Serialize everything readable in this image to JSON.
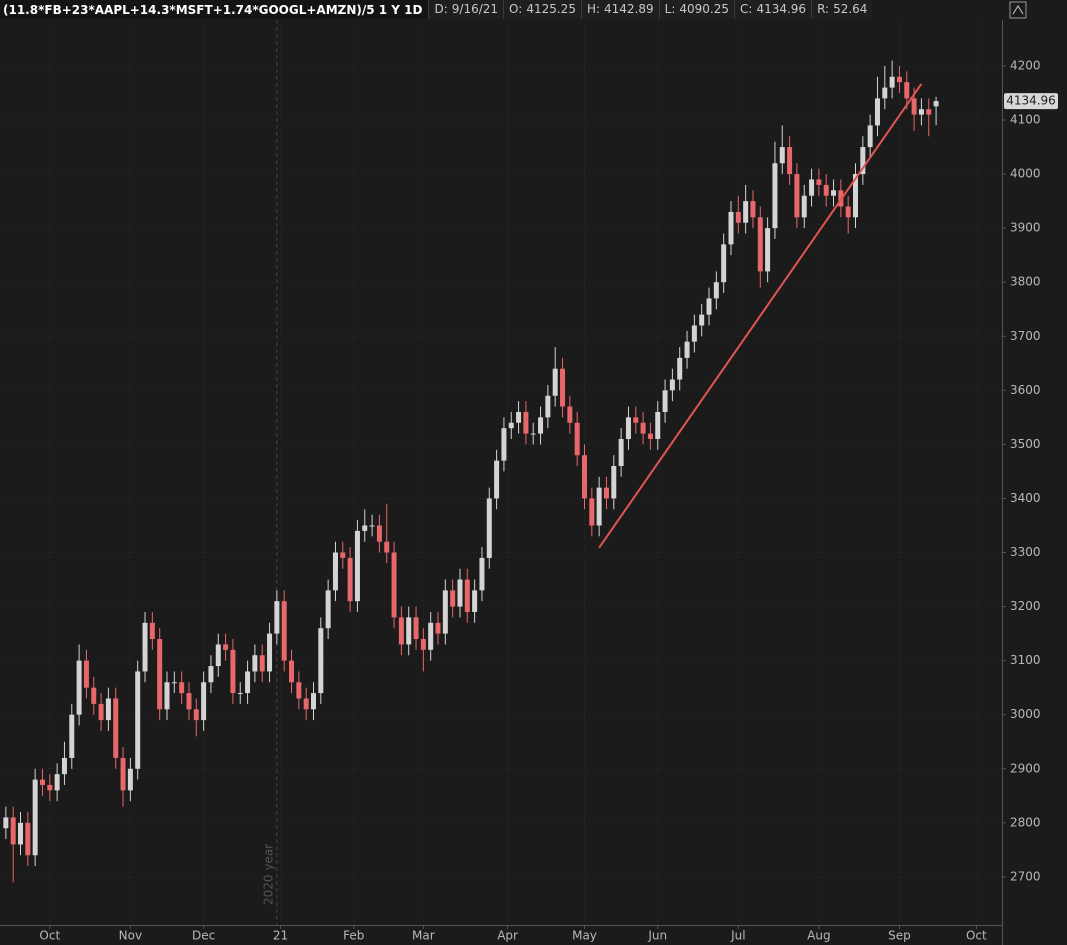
{
  "header": {
    "title": "(11.8*FB+23*AAPL+14.3*MSFT+1.74*GOOGL+AMZN)/5 1 Y 1D",
    "items": [
      {
        "label": "D:",
        "value": "9/16/21"
      },
      {
        "label": "O:",
        "value": 4125.25
      },
      {
        "label": "H:",
        "value": 4142.89
      },
      {
        "label": "L:",
        "value": 4090.25
      },
      {
        "label": "C:",
        "value": 4134.96
      },
      {
        "label": "R:",
        "value": 52.64
      }
    ]
  },
  "chart_data": {
    "type": "candlestick",
    "up_color": "#d4d4d4",
    "down_color": "#e8676b",
    "xlim": [
      -1.6,
      272
    ],
    "ylim": [
      2611,
      4285
    ],
    "xticks": [
      {
        "value": 12,
        "label": "Oct"
      },
      {
        "value": 34,
        "label": "Nov"
      },
      {
        "value": 54,
        "label": "Dec"
      },
      {
        "value": 75,
        "label": "21"
      },
      {
        "value": 95,
        "label": "Feb"
      },
      {
        "value": 114,
        "label": "Mar"
      },
      {
        "value": 137,
        "label": "Apr"
      },
      {
        "value": 158,
        "label": "May"
      },
      {
        "value": 178,
        "label": "Jun"
      },
      {
        "value": 200,
        "label": "Jul"
      },
      {
        "value": 222,
        "label": "Aug"
      },
      {
        "value": 244,
        "label": "Sep"
      },
      {
        "value": 265,
        "label": "Oct"
      }
    ],
    "yticks": [
      2700,
      2800,
      2900,
      3000,
      3100,
      3200,
      3300,
      3400,
      3500,
      3600,
      3700,
      3800,
      3900,
      4000,
      4100,
      4200
    ],
    "grid": true,
    "annotations": [
      {
        "text": "2020 year",
        "x": 74
      }
    ],
    "trendline": {
      "x": [
        162,
        250
      ],
      "y": [
        3309,
        4167
      ],
      "color": "#e05555"
    },
    "x": [
      0,
      2,
      4,
      6,
      8,
      10,
      12,
      14,
      16,
      18,
      20,
      22,
      24,
      26,
      28,
      30,
      32,
      34,
      36,
      38,
      40,
      42,
      44,
      46,
      48,
      50,
      52,
      54,
      56,
      58,
      60,
      62,
      64,
      66,
      68,
      70,
      72,
      74,
      76,
      78,
      80,
      82,
      84,
      86,
      88,
      90,
      92,
      94,
      96,
      98,
      100,
      102,
      104,
      106,
      108,
      110,
      112,
      114,
      116,
      118,
      120,
      122,
      124,
      126,
      128,
      130,
      132,
      134,
      136,
      138,
      140,
      142,
      144,
      146,
      148,
      150,
      152,
      154,
      156,
      158,
      160,
      162,
      164,
      166,
      168,
      170,
      172,
      174,
      176,
      178,
      180,
      182,
      184,
      186,
      188,
      190,
      192,
      194,
      196,
      198,
      200,
      202,
      204,
      206,
      208,
      210,
      212,
      214,
      216,
      218,
      220,
      222,
      224,
      226,
      228,
      230,
      232,
      234,
      236,
      238,
      240,
      242,
      244,
      246,
      248,
      250,
      252,
      254
    ],
    "open": [
      2790,
      2810,
      2760,
      2800,
      2740,
      2880,
      2870,
      2860,
      2890,
      2920,
      3000,
      3100,
      3050,
      3020,
      2990,
      3030,
      2920,
      2860,
      2900,
      3080,
      3170,
      3140,
      3010,
      3060,
      3060,
      3040,
      3010,
      2990,
      3060,
      3090,
      3130,
      3120,
      3040,
      3040,
      3080,
      3110,
      3080,
      3150,
      3210,
      3100,
      3060,
      3030,
      3010,
      3040,
      3160,
      3230,
      3300,
      3290,
      3210,
      3340,
      3350,
      3350,
      3320,
      3300,
      3180,
      3130,
      3180,
      3140,
      3120,
      3170,
      3150,
      3230,
      3200,
      3250,
      3190,
      3230,
      3290,
      3400,
      3470,
      3530,
      3540,
      3560,
      3520,
      3520,
      3550,
      3590,
      3640,
      3570,
      3540,
      3480,
      3400,
      3350,
      3420,
      3400,
      3460,
      3510,
      3550,
      3540,
      3520,
      3510,
      3560,
      3600,
      3620,
      3660,
      3690,
      3720,
      3740,
      3770,
      3800,
      3870,
      3930,
      3910,
      3950,
      3920,
      3820,
      3900,
      4020,
      4050,
      4000,
      3920,
      3960,
      3990,
      3980,
      3960,
      3970,
      3940,
      3920,
      4000,
      4050,
      4090,
      4140,
      4160,
      4180,
      4170,
      4140,
      4110,
      4120,
      4125.25
    ],
    "high": [
      2830,
      2830,
      2820,
      2820,
      2900,
      2900,
      2890,
      2910,
      2950,
      3020,
      3130,
      3120,
      3070,
      3040,
      3050,
      3050,
      2940,
      2920,
      3100,
      3190,
      3190,
      3160,
      3080,
      3080,
      3080,
      3060,
      3030,
      3080,
      3110,
      3150,
      3150,
      3140,
      3060,
      3100,
      3130,
      3130,
      3170,
      3230,
      3230,
      3120,
      3080,
      3050,
      3060,
      3180,
      3250,
      3320,
      3320,
      3310,
      3360,
      3380,
      3370,
      3370,
      3390,
      3320,
      3200,
      3200,
      3200,
      3160,
      3190,
      3190,
      3250,
      3250,
      3270,
      3270,
      3250,
      3310,
      3420,
      3490,
      3550,
      3560,
      3580,
      3580,
      3540,
      3570,
      3610,
      3680,
      3660,
      3590,
      3560,
      3500,
      3420,
      3440,
      3440,
      3480,
      3530,
      3570,
      3570,
      3560,
      3540,
      3580,
      3620,
      3640,
      3680,
      3710,
      3740,
      3760,
      3790,
      3820,
      3890,
      3950,
      3960,
      3980,
      3970,
      3940,
      3920,
      4060,
      4090,
      4070,
      4020,
      3980,
      4010,
      4010,
      4000,
      3990,
      3990,
      3960,
      4020,
      4070,
      4110,
      4180,
      4200,
      4210,
      4200,
      4190,
      4160,
      4140,
      4140,
      4142.89
    ],
    "low": [
      2770,
      2690,
      2740,
      2720,
      2720,
      2850,
      2840,
      2840,
      2870,
      2900,
      2980,
      3030,
      3000,
      2970,
      2970,
      2900,
      2830,
      2840,
      2880,
      3060,
      3120,
      2990,
      2990,
      3040,
      3020,
      2990,
      2960,
      2970,
      3040,
      3070,
      3100,
      3020,
      3020,
      3020,
      3060,
      3060,
      3060,
      3130,
      3080,
      3040,
      3010,
      2990,
      2990,
      3020,
      3140,
      3210,
      3270,
      3190,
      3190,
      3320,
      3330,
      3300,
      3280,
      3160,
      3110,
      3110,
      3120,
      3080,
      3100,
      3130,
      3130,
      3180,
      3180,
      3170,
      3170,
      3210,
      3270,
      3380,
      3450,
      3510,
      3520,
      3500,
      3500,
      3500,
      3530,
      3570,
      3550,
      3520,
      3460,
      3380,
      3330,
      3330,
      3380,
      3380,
      3440,
      3490,
      3520,
      3500,
      3490,
      3490,
      3540,
      3580,
      3600,
      3640,
      3670,
      3700,
      3720,
      3750,
      3780,
      3850,
      3890,
      3890,
      3900,
      3790,
      3800,
      3880,
      4000,
      3980,
      3900,
      3900,
      3940,
      3960,
      3940,
      3940,
      3920,
      3890,
      3900,
      3980,
      4030,
      4070,
      4120,
      4140,
      4150,
      4120,
      4080,
      4090,
      4070,
      4090.25
    ],
    "close": [
      2810,
      2760,
      2800,
      2740,
      2880,
      2870,
      2860,
      2890,
      2920,
      3000,
      3100,
      3050,
      3020,
      2990,
      3030,
      2920,
      2860,
      2900,
      3080,
      3170,
      3140,
      3010,
      3060,
      3060,
      3040,
      3010,
      2990,
      3060,
      3090,
      3130,
      3120,
      3040,
      3040,
      3080,
      3110,
      3080,
      3150,
      3210,
      3100,
      3060,
      3030,
      3010,
      3040,
      3160,
      3230,
      3300,
      3290,
      3210,
      3340,
      3350,
      3350,
      3320,
      3300,
      3180,
      3130,
      3180,
      3140,
      3120,
      3170,
      3150,
      3230,
      3200,
      3250,
      3190,
      3230,
      3290,
      3400,
      3470,
      3530,
      3540,
      3560,
      3520,
      3520,
      3550,
      3590,
      3640,
      3570,
      3540,
      3480,
      3400,
      3350,
      3420,
      3400,
      3460,
      3510,
      3550,
      3540,
      3520,
      3510,
      3560,
      3600,
      3620,
      3660,
      3690,
      3720,
      3740,
      3770,
      3800,
      3870,
      3930,
      3910,
      3950,
      3920,
      3820,
      3900,
      4020,
      4050,
      4000,
      3920,
      3960,
      3990,
      3980,
      3960,
      3970,
      3940,
      3920,
      4000,
      4050,
      4090,
      4140,
      4160,
      4180,
      4170,
      4140,
      4110,
      4120,
      4110,
      4134.96
    ]
  }
}
